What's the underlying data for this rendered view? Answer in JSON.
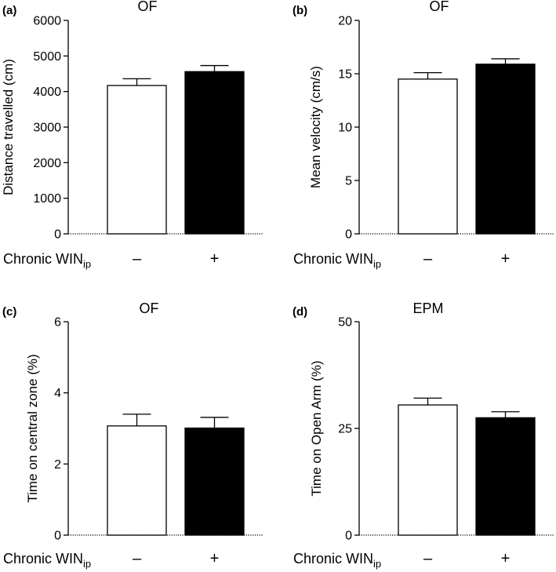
{
  "chart_data": [
    {
      "type": "bar",
      "panel_letter": "(a)",
      "title": "OF",
      "ylabel": "Distance  travelled (cm)",
      "ylim": [
        0,
        6000
      ],
      "yticks": [
        0,
        1000,
        2000,
        3000,
        4000,
        5000,
        6000
      ],
      "xlabel": {
        "main": "Chronic WIN",
        "sub": "ip"
      },
      "categories": [
        "–",
        "+"
      ],
      "values": [
        4170,
        4560
      ],
      "errors": [
        190,
        170
      ],
      "bar_colors": [
        "#ffffff",
        "#000000"
      ]
    },
    {
      "type": "bar",
      "panel_letter": "(b)",
      "title": "OF",
      "ylabel": "Mean  velocity (cm/s)",
      "ylim": [
        0,
        20
      ],
      "yticks": [
        0,
        5,
        10,
        15,
        20
      ],
      "xlabel": {
        "main": "Chronic WIN",
        "sub": "ip"
      },
      "categories": [
        "–",
        "+"
      ],
      "values": [
        14.5,
        15.9
      ],
      "errors": [
        0.6,
        0.5
      ],
      "bar_colors": [
        "#ffffff",
        "#000000"
      ]
    },
    {
      "type": "bar",
      "panel_letter": "(c)",
      "title": "OF",
      "ylabel": "Time on central zone (%)",
      "ylim": [
        0,
        6
      ],
      "yticks": [
        0,
        2,
        4,
        6
      ],
      "xlabel": {
        "main": "Chronic WIN",
        "sub": "ip"
      },
      "categories": [
        "–",
        "+"
      ],
      "values": [
        3.07,
        3.01
      ],
      "errors": [
        0.33,
        0.3
      ],
      "bar_colors": [
        "#ffffff",
        "#000000"
      ]
    },
    {
      "type": "bar",
      "panel_letter": "(d)",
      "title": "EPM",
      "ylabel": "Time on Open Arm (%)",
      "ylim": [
        0,
        50
      ],
      "yticks": [
        0,
        25,
        50
      ],
      "xlabel": {
        "main": "Chronic WIN",
        "sub": "ip"
      },
      "categories": [
        "–",
        "+"
      ],
      "values": [
        30.5,
        27.5
      ],
      "errors": [
        1.6,
        1.4
      ],
      "bar_colors": [
        "#ffffff",
        "#000000"
      ]
    }
  ]
}
